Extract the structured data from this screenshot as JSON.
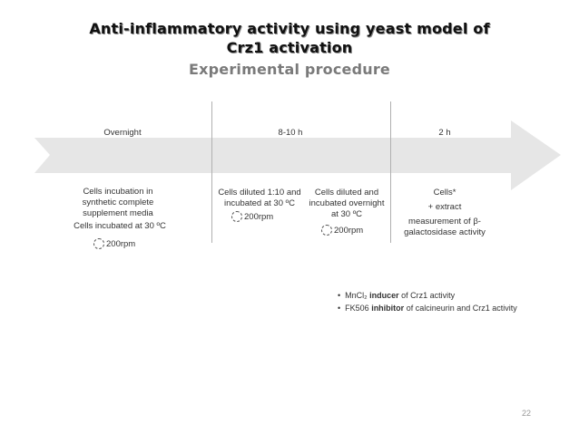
{
  "title": {
    "line1": "Anti-inflammatory activity using yeast model of",
    "line2": "Crz1 activation",
    "subtitle": "Experimental procedure"
  },
  "timeline": {
    "phase1": "Overnight",
    "phase2": "8-10 h",
    "phase3": "2 h"
  },
  "steps": {
    "s1": {
      "text1": "Cells incubation in",
      "text2": "synthetic complete",
      "text3": "supplement  media",
      "text4": "Cells incubated at 30 ºC",
      "rpm": "200rpm"
    },
    "s2": {
      "text1": "Cells diluted 1:10 and",
      "text2": "incubated at 30 ºC",
      "rpm": "200rpm"
    },
    "s3": {
      "text1": "Cells diluted and",
      "text2": "incubated overnight",
      "text3": "at 30 ºC",
      "rpm": "200rpm"
    },
    "s4": {
      "text1": "Cells*",
      "text2": "+ extract",
      "text3": "measurement of β-",
      "text4": "galactosidase activity"
    }
  },
  "notes": {
    "n1": {
      "compound": "MnCl₂ ",
      "role": "inducer",
      "rest": " of Crz1 activity"
    },
    "n2": {
      "compound": "FK506 ",
      "role": "inhibitor",
      "rest": " of calcineurin and Crz1 activity"
    }
  },
  "page_number": "22"
}
